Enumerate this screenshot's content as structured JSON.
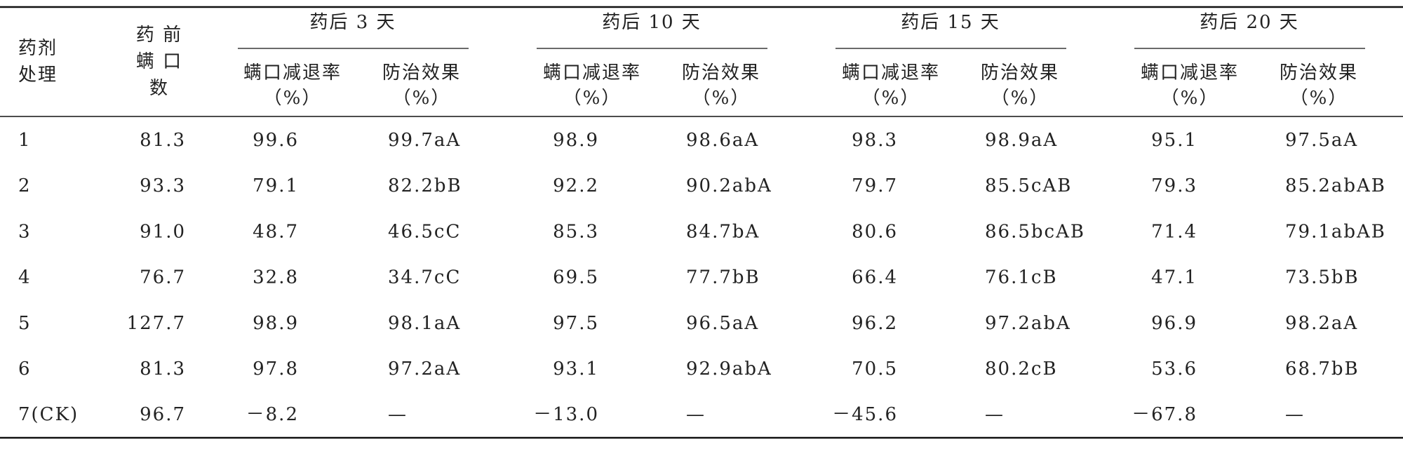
{
  "table": {
    "header": {
      "treatment": "药剂\n处理",
      "pre_count": "药 前\n螨 口\n数",
      "groups": [
        {
          "title": "药后 3 天",
          "columns": [
            "螨口减退率\n（%）",
            "防治效果\n（%）"
          ]
        },
        {
          "title": "药后 10 天",
          "columns": [
            "螨口减退率\n（%）",
            "防治效果\n（%）"
          ]
        },
        {
          "title": "药后 15 天",
          "columns": [
            "螨口减退率\n（%）",
            "防治效果\n（%）"
          ]
        },
        {
          "title": "药后 20 天",
          "columns": [
            "螨口减退率\n（%）",
            "防治效果\n（%）"
          ]
        }
      ]
    },
    "rows": [
      [
        "1",
        "81.3",
        "99.6",
        "99.7aA",
        "98.9",
        "98.6aA",
        "98.3",
        "98.9aA",
        "95.1",
        "97.5aA"
      ],
      [
        "2",
        "93.3",
        "79.1",
        "82.2bB",
        "92.2",
        "90.2abA",
        "79.7",
        "85.5cAB",
        "79.3",
        "85.2abAB"
      ],
      [
        "3",
        "91.0",
        "48.7",
        "46.5cC",
        "85.3",
        "84.7bA",
        "80.6",
        "86.5bcAB",
        "71.4",
        "79.1abAB"
      ],
      [
        "4",
        "76.7",
        "32.8",
        "34.7cC",
        "69.5",
        "77.7bB",
        "66.4",
        "76.1cB",
        "47.1",
        "73.5bB"
      ],
      [
        "5",
        "127.7",
        "98.9",
        "98.1aA",
        "97.5",
        "96.5aA",
        "96.2",
        "97.2abA",
        "96.9",
        "98.2aA"
      ],
      [
        "6",
        "81.3",
        "97.8",
        "97.2aA",
        "93.1",
        "92.9abA",
        "70.5",
        "80.2cB",
        "53.6",
        "68.7bB"
      ],
      [
        "7(CK)",
        "96.7",
        "－8.2",
        "—",
        "－13.0",
        "—",
        "－45.6",
        "—",
        "－67.8",
        "—"
      ]
    ]
  }
}
